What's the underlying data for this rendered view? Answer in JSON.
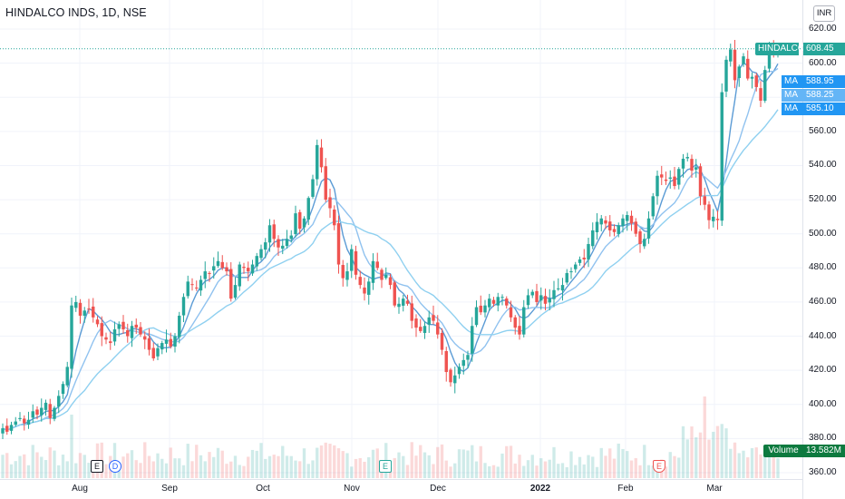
{
  "chart": {
    "title": "HINDALCO INDS, 1D, NSE",
    "currency": "INR",
    "last_price_label": "HINDALCO",
    "last_price": "608.45",
    "ma_labels": [
      {
        "label": "MA",
        "value": "588.95",
        "color": "#2196f3"
      },
      {
        "label": "MA",
        "value": "588.25",
        "color": "#64b5f6"
      },
      {
        "label": "MA",
        "value": "585.10",
        "color": "#2196f3"
      }
    ],
    "volume_label": "Volume",
    "volume_value": "13.582M",
    "y_ticks": [
      "620.00",
      "600.00",
      "580.00",
      "560.00",
      "540.00",
      "520.00",
      "500.00",
      "480.00",
      "460.00",
      "440.00",
      "420.00",
      "400.00",
      "380.00",
      "360.00"
    ],
    "x_ticks": [
      "Aug",
      "Sep",
      "Oct",
      "Nov",
      "Dec",
      "2022",
      "Feb",
      "Mar"
    ],
    "events": [
      {
        "kind": "E",
        "style": "e"
      },
      {
        "kind": "D",
        "style": "d"
      },
      {
        "kind": "E",
        "style": "eg"
      },
      {
        "kind": "E",
        "style": "er"
      }
    ],
    "colors": {
      "up": "#26a69a",
      "down": "#ef5350",
      "ma1": "#5b9bd5",
      "ma2": "#90c2ef",
      "ma3": "#8fd0f0",
      "price_line": "#26a69a"
    }
  },
  "chart_data": {
    "type": "candlestick",
    "title": "HINDALCO INDS, 1D, NSE",
    "ylim": [
      360,
      620
    ],
    "x_labels": [
      "Aug",
      "Sep",
      "Oct",
      "Nov",
      "Dec",
      "2022",
      "Feb",
      "Mar"
    ],
    "close": [
      386,
      384,
      388,
      390,
      392,
      389,
      391,
      396,
      394,
      398,
      401,
      392,
      398,
      405,
      412,
      422,
      458,
      460,
      452,
      455,
      456,
      451,
      447,
      440,
      438,
      436,
      444,
      447,
      444,
      440,
      446,
      445,
      441,
      438,
      432,
      427,
      433,
      436,
      438,
      434,
      440,
      452,
      463,
      472,
      470,
      468,
      473,
      478,
      477,
      481,
      484,
      480,
      478,
      462,
      470,
      482,
      480,
      478,
      482,
      487,
      491,
      495,
      505,
      497,
      492,
      493,
      497,
      499,
      512,
      503,
      509,
      521,
      532,
      552,
      539,
      520,
      515,
      505,
      482,
      474,
      478,
      491,
      476,
      470,
      465,
      472,
      484,
      480,
      473,
      476,
      470,
      458,
      459,
      462,
      459,
      449,
      445,
      443,
      446,
      451,
      449,
      441,
      432,
      419,
      413,
      417,
      422,
      426,
      429,
      446,
      457,
      454,
      458,
      462,
      459,
      463,
      463,
      458,
      451,
      445,
      441,
      457,
      464,
      466,
      460,
      464,
      459,
      462,
      467,
      468,
      470,
      477,
      478,
      482,
      485,
      485,
      494,
      502,
      507,
      509,
      506,
      502,
      501,
      505,
      509,
      511,
      506,
      500,
      494,
      497,
      509,
      522,
      534,
      533,
      531,
      533,
      528,
      538,
      544,
      545,
      537,
      539,
      522,
      517,
      508,
      510,
      508,
      583,
      602,
      608,
      590,
      598,
      604,
      591,
      592,
      586,
      578,
      596,
      609,
      607,
      608
    ],
    "volume_unit": "M",
    "last_volume": 13.582
  }
}
